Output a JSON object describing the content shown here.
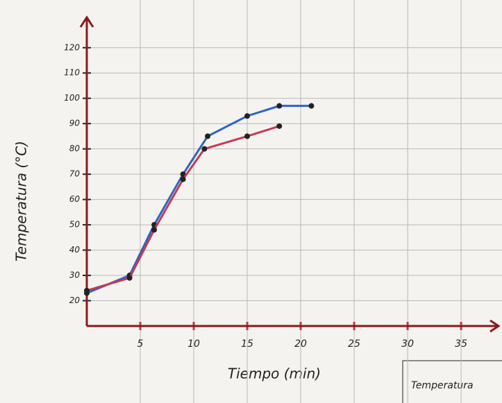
{
  "chart_data": {
    "type": "line",
    "x_label": "Tiempo (min)",
    "y_label": "Temperatura (°C)",
    "annotation": "Temperatura",
    "xlim": [
      0,
      38.5
    ],
    "ylim": [
      10,
      132
    ],
    "xticks": [
      5,
      10,
      15,
      20,
      25,
      30,
      35
    ],
    "yticks": [
      20,
      30,
      40,
      50,
      60,
      70,
      80,
      90,
      100,
      110,
      120
    ],
    "grid": true,
    "series": [
      {
        "color": "#2f63c4",
        "x": [
          0,
          4,
          6.3,
          9,
          11.3,
          15,
          18,
          21
        ],
        "values": [
          23,
          30,
          50,
          70,
          85,
          93,
          97,
          97
        ]
      },
      {
        "color": "#c23a52",
        "x": [
          0,
          4,
          6.3,
          9,
          11,
          15,
          18
        ],
        "values": [
          24,
          29,
          48,
          68,
          80,
          85,
          89
        ]
      }
    ]
  }
}
